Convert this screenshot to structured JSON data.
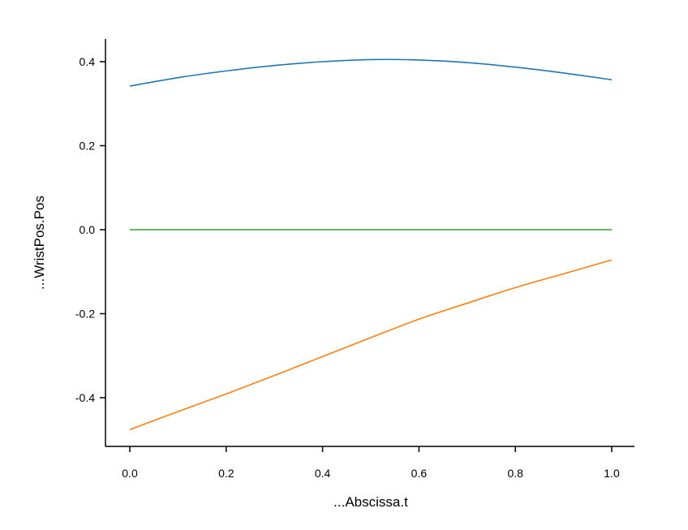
{
  "chart_data": {
    "type": "line",
    "title": "",
    "xlabel": "...Abscissa.t",
    "ylabel": "...WristPos.Pos",
    "xlim": [
      -0.05,
      1.05
    ],
    "ylim": [
      -0.52,
      0.45
    ],
    "x_ticks": [
      0.0,
      0.2,
      0.4,
      0.6,
      0.8,
      1.0
    ],
    "x_tick_labels": [
      "0.0",
      "0.2",
      "0.4",
      "0.6",
      "0.8",
      "1.0"
    ],
    "y_ticks": [
      -0.4,
      -0.2,
      0.0,
      0.2,
      0.4
    ],
    "y_tick_labels": [
      "-0.4",
      "-0.2",
      "0.0",
      "0.2",
      "0.4"
    ],
    "grid": false,
    "legend": false,
    "series": [
      {
        "color": "#1f77b4",
        "x": [
          0.0,
          0.1,
          0.2,
          0.3,
          0.4,
          0.5,
          0.6,
          0.7,
          0.8,
          0.9,
          1.0
        ],
        "y": [
          0.342,
          0.362,
          0.378,
          0.391,
          0.4,
          0.405,
          0.404,
          0.398,
          0.387,
          0.373,
          0.357
        ]
      },
      {
        "color": "#ff7f0e",
        "x": [
          0.0,
          0.1,
          0.2,
          0.3,
          0.4,
          0.5,
          0.6,
          0.7,
          0.8,
          0.9,
          1.0
        ],
        "y": [
          -0.476,
          -0.433,
          -0.391,
          -0.347,
          -0.302,
          -0.257,
          -0.213,
          -0.175,
          -0.138,
          -0.105,
          -0.072
        ]
      },
      {
        "color": "#2ca02c",
        "x": [
          0.0,
          1.0
        ],
        "y": [
          0.0,
          0.0
        ]
      }
    ]
  }
}
